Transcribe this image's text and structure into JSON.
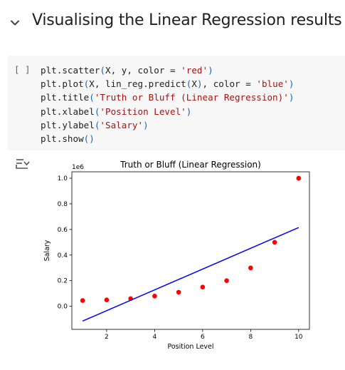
{
  "section": {
    "title": "Visualising the Linear Regression results",
    "toggle_icon": "chevron-down-icon"
  },
  "cell": {
    "run_label": "[ ]",
    "code_lines": [
      [
        {
          "t": "plt.scatter",
          "c": ""
        },
        {
          "t": "(",
          "c": "par"
        },
        {
          "t": "X, y, color = ",
          "c": ""
        },
        {
          "t": "'red'",
          "c": "str"
        },
        {
          "t": ")",
          "c": "par"
        }
      ],
      [
        {
          "t": "plt.plot",
          "c": ""
        },
        {
          "t": "(",
          "c": "par"
        },
        {
          "t": "X, lin_reg.predict",
          "c": ""
        },
        {
          "t": "(",
          "c": "par"
        },
        {
          "t": "X",
          "c": ""
        },
        {
          "t": ")",
          "c": "par"
        },
        {
          "t": ", color = ",
          "c": ""
        },
        {
          "t": "'blue'",
          "c": "str"
        },
        {
          "t": ")",
          "c": "par"
        }
      ],
      [
        {
          "t": "plt.title",
          "c": ""
        },
        {
          "t": "(",
          "c": "par"
        },
        {
          "t": "'Truth or Bluff (Linear Regression)'",
          "c": "str"
        },
        {
          "t": ")",
          "c": "par"
        }
      ],
      [
        {
          "t": "plt.xlabel",
          "c": ""
        },
        {
          "t": "(",
          "c": "par"
        },
        {
          "t": "'Position Level'",
          "c": "str"
        },
        {
          "t": ")",
          "c": "par"
        }
      ],
      [
        {
          "t": "plt.ylabel",
          "c": ""
        },
        {
          "t": "(",
          "c": "par"
        },
        {
          "t": "'Salary'",
          "c": "str"
        },
        {
          "t": ")",
          "c": "par"
        }
      ],
      [
        {
          "t": "plt.show",
          "c": ""
        },
        {
          "t": "()",
          "c": "par"
        }
      ]
    ],
    "output_icon": "output-toggle-icon"
  },
  "chart_data": {
    "type": "scatter",
    "title": "Truth or Bluff (Linear Regression)",
    "xlabel": "Position Level",
    "ylabel": "Salary",
    "y_scale_label": "1e6",
    "xlim": [
      0.55,
      10.45
    ],
    "ylim": [
      -0.18,
      1.05
    ],
    "xticks": [
      2,
      4,
      6,
      8,
      10
    ],
    "xtick_labels": [
      "2",
      "4",
      "6",
      "8",
      "10"
    ],
    "yticks": [
      0.0,
      0.2,
      0.4,
      0.6,
      0.8,
      1.0
    ],
    "ytick_labels": [
      "0.0",
      "0.2",
      "0.4",
      "0.6",
      "0.8",
      "1.0"
    ],
    "grid": false,
    "series": [
      {
        "kind": "scatter",
        "color": "#ff0000",
        "x": [
          1,
          2,
          3,
          4,
          5,
          6,
          7,
          8,
          9,
          10
        ],
        "y": [
          0.045,
          0.05,
          0.06,
          0.08,
          0.11,
          0.15,
          0.2,
          0.3,
          0.5,
          1.0
        ]
      },
      {
        "kind": "line",
        "color": "#0000ff",
        "x": [
          1,
          10
        ],
        "y": [
          -0.115,
          0.615
        ]
      }
    ]
  }
}
